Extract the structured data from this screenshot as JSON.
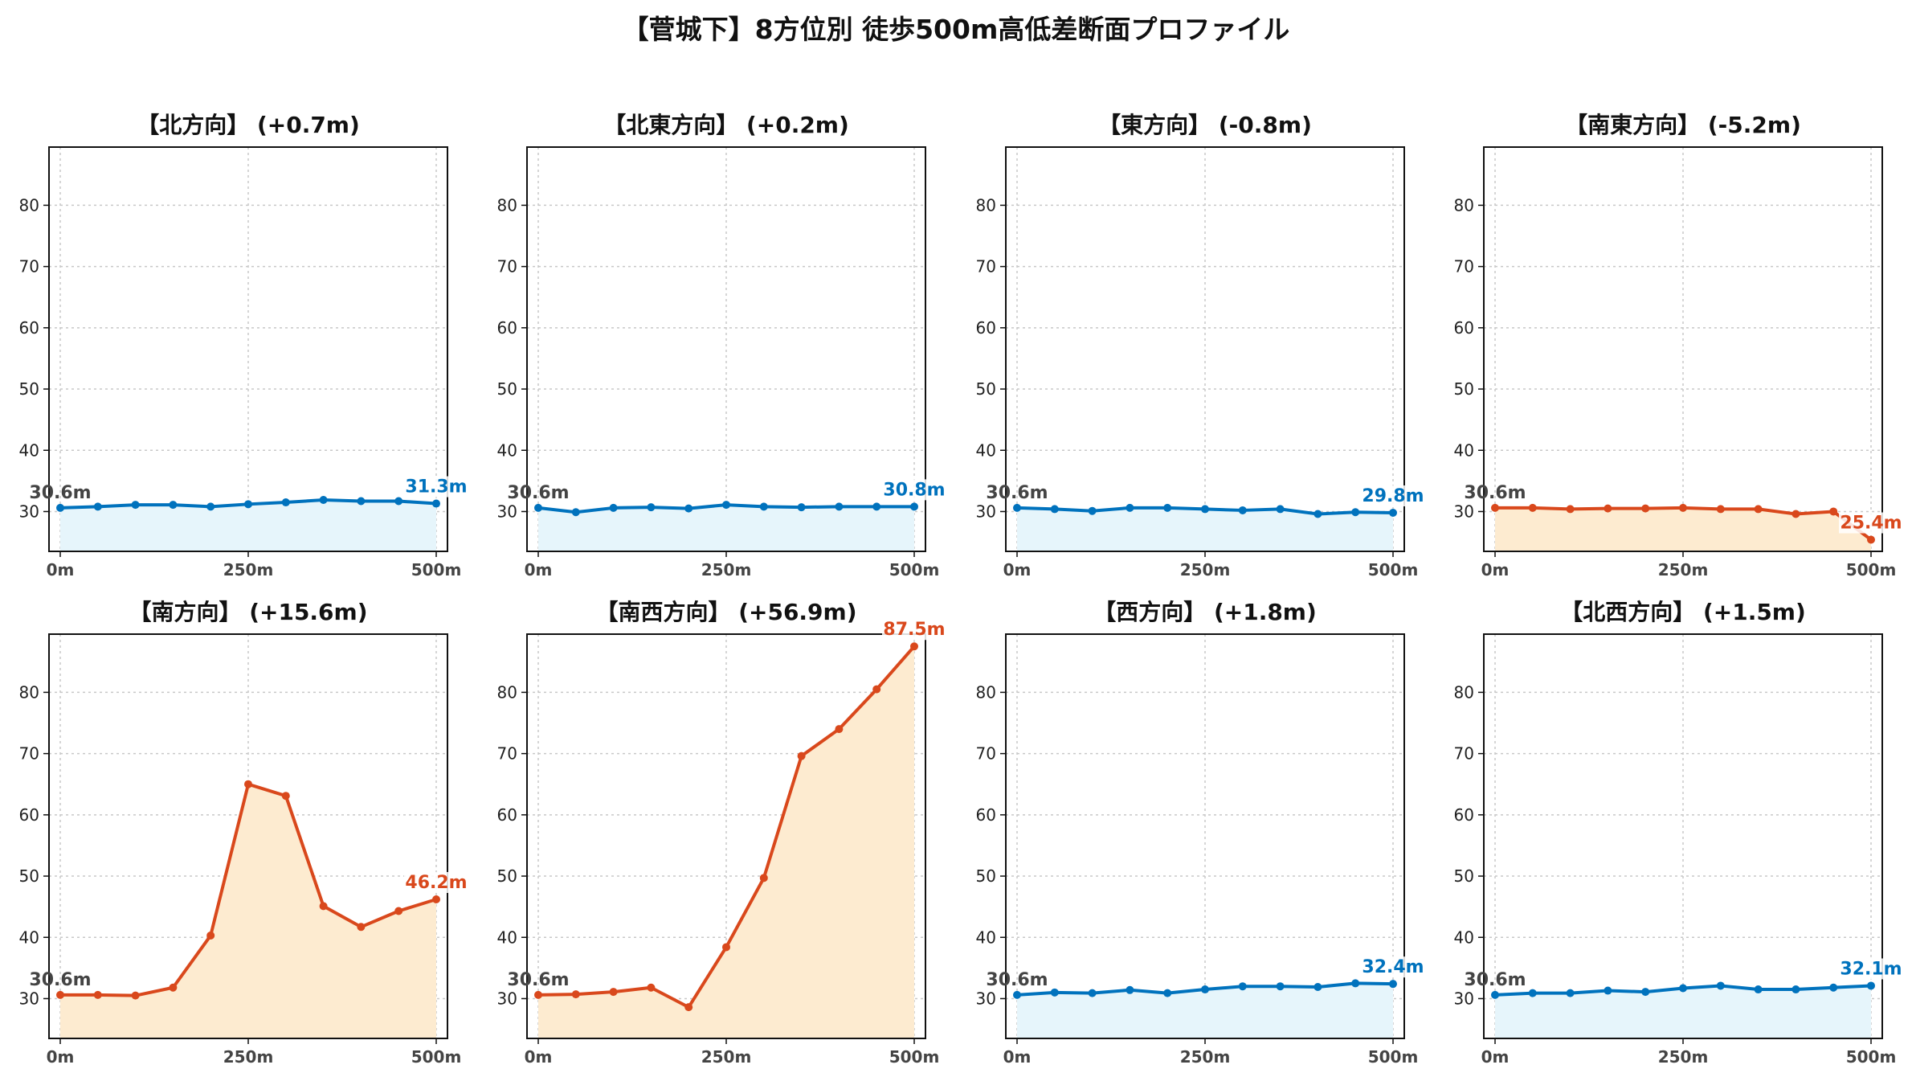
{
  "title": "【菅城下】8方位別 徒歩500m高低差断面プロファイル",
  "colors": {
    "up_line": "#0072bd",
    "up_fill": "#e6f5fb",
    "down_line": "#d9481c",
    "down_fill": "#fdebd0",
    "start_label": "#444444"
  },
  "chart_data": [
    {
      "type": "area",
      "title": "【北方向】 (+0.7m)",
      "trend": "flat",
      "x": [
        0,
        50,
        100,
        150,
        200,
        250,
        300,
        350,
        400,
        450,
        500
      ],
      "y": [
        30.6,
        30.8,
        31.1,
        31.1,
        30.8,
        31.2,
        31.5,
        31.9,
        31.7,
        31.7,
        31.3
      ],
      "start_label": "30.6m",
      "end_label": "31.3m",
      "ylim": [
        23.5,
        89.5
      ],
      "yticks": [
        30,
        40,
        50,
        60,
        70,
        80
      ],
      "xticks": [
        0,
        250,
        500
      ],
      "xtick_labels": [
        "0m",
        "250m",
        "500m"
      ],
      "grid": true
    },
    {
      "type": "area",
      "title": "【北東方向】 (+0.2m)",
      "trend": "flat",
      "x": [
        0,
        50,
        100,
        150,
        200,
        250,
        300,
        350,
        400,
        450,
        500
      ],
      "y": [
        30.6,
        29.9,
        30.6,
        30.7,
        30.5,
        31.1,
        30.8,
        30.7,
        30.8,
        30.8,
        30.8
      ],
      "start_label": "30.6m",
      "end_label": "30.8m",
      "ylim": [
        23.5,
        89.5
      ],
      "yticks": [
        30,
        40,
        50,
        60,
        70,
        80
      ],
      "xticks": [
        0,
        250,
        500
      ],
      "xtick_labels": [
        "0m",
        "250m",
        "500m"
      ],
      "grid": true
    },
    {
      "type": "area",
      "title": "【東方向】 (-0.8m)",
      "trend": "flat",
      "x": [
        0,
        50,
        100,
        150,
        200,
        250,
        300,
        350,
        400,
        450,
        500
      ],
      "y": [
        30.6,
        30.4,
        30.1,
        30.6,
        30.6,
        30.4,
        30.2,
        30.4,
        29.6,
        29.9,
        29.8
      ],
      "start_label": "30.6m",
      "end_label": "29.8m",
      "ylim": [
        23.5,
        89.5
      ],
      "yticks": [
        30,
        40,
        50,
        60,
        70,
        80
      ],
      "xticks": [
        0,
        250,
        500
      ],
      "xtick_labels": [
        "0m",
        "250m",
        "500m"
      ],
      "grid": true
    },
    {
      "type": "area",
      "title": "【南東方向】 (-5.2m)",
      "trend": "down",
      "x": [
        0,
        50,
        100,
        150,
        200,
        250,
        300,
        350,
        400,
        450,
        500
      ],
      "y": [
        30.6,
        30.6,
        30.4,
        30.5,
        30.5,
        30.6,
        30.4,
        30.4,
        29.6,
        30.0,
        25.4
      ],
      "start_label": "30.6m",
      "end_label": "25.4m",
      "ylim": [
        23.5,
        89.5
      ],
      "yticks": [
        30,
        40,
        50,
        60,
        70,
        80
      ],
      "xticks": [
        0,
        250,
        500
      ],
      "xtick_labels": [
        "0m",
        "250m",
        "500m"
      ],
      "grid": true
    },
    {
      "type": "area",
      "title": "【南方向】 (+15.6m)",
      "trend": "up",
      "x": [
        0,
        50,
        100,
        150,
        200,
        250,
        300,
        350,
        400,
        450,
        500
      ],
      "y": [
        30.6,
        30.6,
        30.5,
        31.8,
        40.3,
        65.0,
        63.1,
        45.1,
        41.7,
        44.3,
        46.2
      ],
      "start_label": "30.6m",
      "end_label": "46.2m",
      "ylim": [
        23.5,
        89.5
      ],
      "yticks": [
        30,
        40,
        50,
        60,
        70,
        80
      ],
      "xticks": [
        0,
        250,
        500
      ],
      "xtick_labels": [
        "0m",
        "250m",
        "500m"
      ],
      "grid": true
    },
    {
      "type": "area",
      "title": "【南西方向】 (+56.9m)",
      "trend": "up",
      "x": [
        0,
        50,
        100,
        150,
        200,
        250,
        300,
        350,
        400,
        450,
        500
      ],
      "y": [
        30.6,
        30.7,
        31.1,
        31.8,
        28.6,
        38.4,
        49.7,
        69.6,
        74.0,
        80.5,
        87.5
      ],
      "start_label": "30.6m",
      "end_label": "87.5m",
      "ylim": [
        23.5,
        89.5
      ],
      "yticks": [
        30,
        40,
        50,
        60,
        70,
        80
      ],
      "xticks": [
        0,
        250,
        500
      ],
      "xtick_labels": [
        "0m",
        "250m",
        "500m"
      ],
      "grid": true
    },
    {
      "type": "area",
      "title": "【西方向】 (+1.8m)",
      "trend": "flat",
      "x": [
        0,
        50,
        100,
        150,
        200,
        250,
        300,
        350,
        400,
        450,
        500
      ],
      "y": [
        30.6,
        31.0,
        30.9,
        31.4,
        30.9,
        31.5,
        32.0,
        32.0,
        31.9,
        32.5,
        32.4
      ],
      "start_label": "30.6m",
      "end_label": "32.4m",
      "ylim": [
        23.5,
        89.5
      ],
      "yticks": [
        30,
        40,
        50,
        60,
        70,
        80
      ],
      "xticks": [
        0,
        250,
        500
      ],
      "xtick_labels": [
        "0m",
        "250m",
        "500m"
      ],
      "grid": true
    },
    {
      "type": "area",
      "title": "【北西方向】 (+1.5m)",
      "trend": "flat",
      "x": [
        0,
        50,
        100,
        150,
        200,
        250,
        300,
        350,
        400,
        450,
        500
      ],
      "y": [
        30.6,
        30.9,
        30.9,
        31.3,
        31.1,
        31.7,
        32.1,
        31.5,
        31.5,
        31.8,
        32.1
      ],
      "start_label": "30.6m",
      "end_label": "32.1m",
      "ylim": [
        23.5,
        89.5
      ],
      "yticks": [
        30,
        40,
        50,
        60,
        70,
        80
      ],
      "xticks": [
        0,
        250,
        500
      ],
      "xtick_labels": [
        "0m",
        "250m",
        "500m"
      ],
      "grid": true
    }
  ]
}
